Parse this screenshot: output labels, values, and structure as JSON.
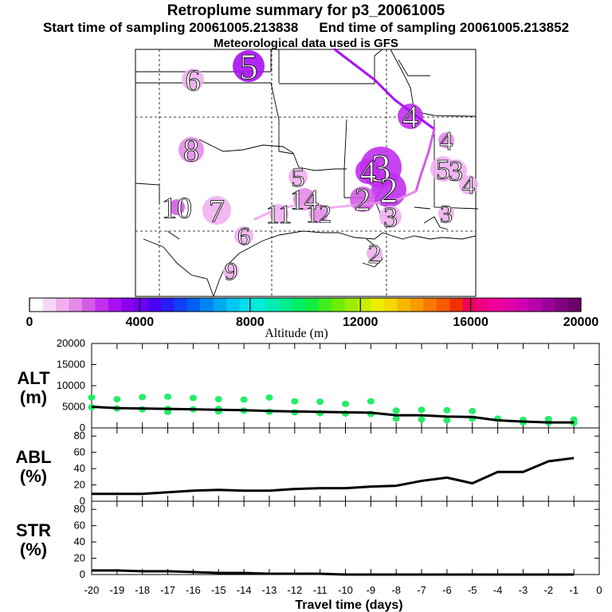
{
  "header": {
    "title": "Retroplume summary for p3_20061005",
    "start_label": "Start time of sampling 20061005.213838",
    "end_label": "End time of sampling 20061005.213852",
    "met_label": "Meteorological data used is GFS"
  },
  "colorbar": {
    "tick_labels": [
      "0",
      "4000",
      "8000",
      "12000",
      "16000",
      "20000"
    ],
    "title": "Altitude (m)",
    "colors": [
      "#ffffff",
      "#f7d7f7",
      "#f0b0f0",
      "#e48ae8",
      "#d45ce6",
      "#c030ee",
      "#a810f4",
      "#8c00f0",
      "#6e00ee",
      "#4a00f4",
      "#2a1cf8",
      "#1040f8",
      "#0060f4",
      "#0084f4",
      "#00a8f2",
      "#00c8f0",
      "#00e0ea",
      "#00ecd8",
      "#00ecb4",
      "#00ee90",
      "#00ee66",
      "#10ee40",
      "#40ee20",
      "#6cee00",
      "#9cee00",
      "#c8ee00",
      "#ecee00",
      "#f4d800",
      "#f8b800",
      "#f89a00",
      "#f87a00",
      "#f85a00",
      "#f03000",
      "#f0005a",
      "#f00082",
      "#ee0098",
      "#e400a8",
      "#d000b0",
      "#b800aa",
      "#9c0098",
      "#820080",
      "#6a006a"
    ]
  },
  "map": {
    "labels": [
      {
        "text": "5",
        "alt_color": "#a810f4"
      },
      {
        "text": "6",
        "alt_color": "#f0b0f0"
      },
      {
        "text": "4",
        "alt_color": "#c030ee"
      },
      {
        "text": "4",
        "alt_color": "#e48ae8"
      },
      {
        "text": "8",
        "alt_color": "#e48ae8"
      },
      {
        "text": "5",
        "alt_color": "#f0b0f0"
      },
      {
        "text": "3",
        "alt_color": "#c030ee"
      },
      {
        "text": "4",
        "alt_color": "#c030ee"
      },
      {
        "text": "5",
        "alt_color": "#f0b0f0"
      },
      {
        "text": "3",
        "alt_color": "#f0b0f0"
      },
      {
        "text": "4",
        "alt_color": "#f0b0f0"
      },
      {
        "text": "10",
        "alt_color": "#d45ce6"
      },
      {
        "text": "7",
        "alt_color": "#f0b0f0"
      },
      {
        "text": "11",
        "alt_color": "#f0b0f0"
      },
      {
        "text": "14",
        "alt_color": "#e48ae8"
      },
      {
        "text": "12",
        "alt_color": "#e48ae8"
      },
      {
        "text": "2",
        "alt_color": "#c030ee"
      },
      {
        "text": "2",
        "alt_color": "#d45ce6"
      },
      {
        "text": "3",
        "alt_color": "#f0b0f0"
      },
      {
        "text": "3",
        "alt_color": "#f0b0f0"
      },
      {
        "text": "6",
        "alt_color": "#f0b0f0"
      },
      {
        "text": "2",
        "alt_color": "#f0b0f0"
      },
      {
        "text": "9",
        "alt_color": "#f0b0f0"
      }
    ]
  },
  "chart_data": {
    "type": "line",
    "xlabel": "Travel time (days)",
    "x_ticks": [
      "-20",
      "-19",
      "-18",
      "-17",
      "-16",
      "-15",
      "-14",
      "-13",
      "-12",
      "-11",
      "-10",
      "-9",
      "-8",
      "-7",
      "-6",
      "-5",
      "-4",
      "-3",
      "-2",
      "-1",
      "0"
    ],
    "xlim": [
      -20,
      0
    ],
    "panels": [
      {
        "label_top": "ALT",
        "label_bottom": "(m)",
        "ylim": [
          0,
          20000
        ],
        "y_ticks": [
          "0",
          "5000",
          "10000",
          "15000",
          "20000"
        ],
        "series_mean": {
          "x": [
            -20,
            -19,
            -18,
            -17,
            -16,
            -15,
            -14,
            -13,
            -12,
            -11,
            -10,
            -9,
            -8,
            -7,
            -6,
            -5,
            -4,
            -3,
            -2,
            -1
          ],
          "y": [
            5000,
            4700,
            4600,
            4500,
            4400,
            4300,
            4200,
            4000,
            3900,
            3800,
            3700,
            3600,
            3000,
            3000,
            2700,
            2600,
            1800,
            1500,
            1300,
            1300
          ]
        },
        "scatter_color": "#22ee66",
        "scatter_points": [
          {
            "x": -20,
            "y": 7200
          },
          {
            "x": -20,
            "y": 4900
          },
          {
            "x": -19,
            "y": 6800
          },
          {
            "x": -19,
            "y": 4600
          },
          {
            "x": -18,
            "y": 7300
          },
          {
            "x": -18,
            "y": 4400
          },
          {
            "x": -17,
            "y": 7400
          },
          {
            "x": -17,
            "y": 4500
          },
          {
            "x": -17,
            "y": 3800
          },
          {
            "x": -16,
            "y": 7100
          },
          {
            "x": -16,
            "y": 4400
          },
          {
            "x": -15,
            "y": 6800
          },
          {
            "x": -15,
            "y": 4500
          },
          {
            "x": -15,
            "y": 3900
          },
          {
            "x": -14,
            "y": 6700
          },
          {
            "x": -14,
            "y": 4100
          },
          {
            "x": -13,
            "y": 7200
          },
          {
            "x": -13,
            "y": 3800
          },
          {
            "x": -12,
            "y": 6300
          },
          {
            "x": -12,
            "y": 3700
          },
          {
            "x": -11,
            "y": 6200
          },
          {
            "x": -11,
            "y": 3500
          },
          {
            "x": -10,
            "y": 5700
          },
          {
            "x": -10,
            "y": 3400
          },
          {
            "x": -9,
            "y": 6300
          },
          {
            "x": -9,
            "y": 3300
          },
          {
            "x": -8,
            "y": 4100
          },
          {
            "x": -8,
            "y": 2200
          },
          {
            "x": -7,
            "y": 4300
          },
          {
            "x": -7,
            "y": 2000
          },
          {
            "x": -6,
            "y": 4200
          },
          {
            "x": -6,
            "y": 1800
          },
          {
            "x": -5,
            "y": 4000
          },
          {
            "x": -5,
            "y": 2200
          },
          {
            "x": -4,
            "y": 2200
          },
          {
            "x": -3,
            "y": 1900
          },
          {
            "x": -3,
            "y": 1300
          },
          {
            "x": -2,
            "y": 2100
          },
          {
            "x": -2,
            "y": 1300
          },
          {
            "x": -1,
            "y": 2000
          },
          {
            "x": -1,
            "y": 1200
          }
        ]
      },
      {
        "label_top": "ABL",
        "label_bottom": "(%)",
        "ylim": [
          0,
          90
        ],
        "y_ticks": [
          "0",
          "20",
          "40",
          "60",
          "80"
        ],
        "series_mean": {
          "x": [
            -20,
            -19,
            -18,
            -17,
            -16,
            -15,
            -14,
            -13,
            -12,
            -11,
            -10,
            -9,
            -8,
            -7,
            -6,
            -5,
            -4,
            -3,
            -2,
            -1
          ],
          "y": [
            9,
            9,
            9,
            11,
            13,
            14,
            13,
            13,
            15,
            16,
            16,
            18,
            19,
            25,
            29,
            22,
            36,
            36,
            49,
            53
          ]
        }
      },
      {
        "label_top": "STR",
        "label_bottom": "(%)",
        "ylim": [
          0,
          90
        ],
        "y_ticks": [
          "0",
          "20",
          "40",
          "60",
          "80"
        ],
        "series_mean": {
          "x": [
            -20,
            -19,
            -18,
            -17,
            -16,
            -15,
            -14,
            -13,
            -12,
            -11,
            -10,
            -9,
            -8,
            -7,
            -6,
            -5,
            -4,
            -3,
            -2,
            -1
          ],
          "y": [
            5,
            5,
            4,
            4,
            3,
            2,
            2,
            1,
            1,
            1,
            0,
            0,
            0,
            0,
            0,
            0,
            0,
            0,
            0,
            0
          ]
        }
      }
    ]
  }
}
